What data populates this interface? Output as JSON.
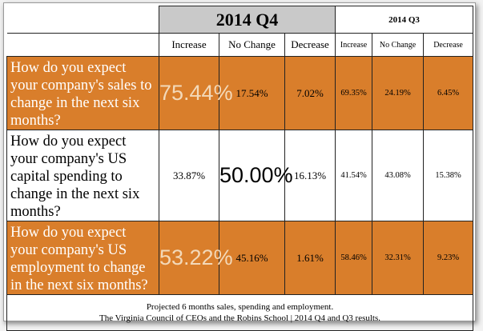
{
  "chart_data": {
    "type": "table",
    "periods": [
      "2014 Q4",
      "2014 Q3"
    ],
    "columns": [
      "Increase",
      "No Change",
      "Decrease"
    ],
    "rows": [
      {
        "question": "How do you expect your company's sales to change in the next six months?",
        "q4": [
          "75.44%",
          "17.54%",
          "7.02%"
        ],
        "q3": [
          "69.35%",
          "24.19%",
          "6.45%"
        ]
      },
      {
        "question": "How do you expect your company's US capital spending to change in the next six months?",
        "q4": [
          "33.87%",
          "50.00%",
          "16.13%"
        ],
        "q3": [
          "41.54%",
          "43.08%",
          "15.38%"
        ]
      },
      {
        "question": "How do you expect your company's US employment to change in the next six months?",
        "q4": [
          "53.22%",
          "45.16%",
          "1.61%"
        ],
        "q3": [
          "58.46%",
          "32.31%",
          "9.23%"
        ]
      }
    ],
    "caption": [
      "Projected 6 months sales, spending and employment.",
      "The Virginia Council of CEOs and the Robins School | 2014 Q4 and Q3 results."
    ]
  },
  "colors": {
    "highlight_row": "#d97e2b",
    "q4_header": "#c9c9c9",
    "highlight_value_text": "#f3d9b9"
  }
}
